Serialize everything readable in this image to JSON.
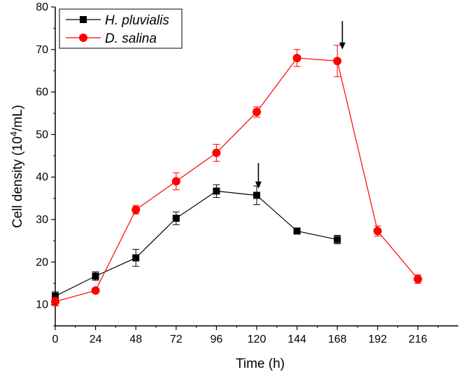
{
  "chart_data": {
    "type": "line",
    "title": "",
    "xlabel": "Time (h)",
    "ylabel_main": "Cell density (10",
    "ylabel_sup": "4",
    "ylabel_tail": "/mL)",
    "xlim": [
      0,
      240
    ],
    "ylim": [
      5,
      80
    ],
    "x_ticks": [
      0,
      24,
      48,
      72,
      96,
      120,
      144,
      168,
      192,
      216
    ],
    "y_ticks": [
      10,
      20,
      30,
      40,
      50,
      60,
      70,
      80
    ],
    "grid": false,
    "legend_position": "top-left",
    "series": [
      {
        "name": "H. pluvialis",
        "color": "#000000",
        "marker": "square",
        "x": [
          0,
          24,
          48,
          72,
          96,
          120,
          144,
          168
        ],
        "y": [
          12.0,
          16.7,
          21.0,
          30.3,
          36.7,
          35.7,
          27.3,
          25.3
        ],
        "err": [
          1.0,
          1.0,
          2.0,
          1.5,
          1.5,
          2.2,
          0.7,
          1.0
        ]
      },
      {
        "name": "D. salina",
        "color": "#ff0000",
        "marker": "circle",
        "x": [
          0,
          24,
          48,
          72,
          96,
          120,
          144,
          168,
          192,
          216
        ],
        "y": [
          10.7,
          13.3,
          32.3,
          39.0,
          45.7,
          55.3,
          68.0,
          67.3,
          27.3,
          16.0
        ],
        "err": [
          1.0,
          0.5,
          1.0,
          2.0,
          2.0,
          1.2,
          2.0,
          3.7,
          1.2,
          1.0
        ]
      }
    ],
    "annotations": [
      {
        "type": "arrow",
        "x": 121,
        "y_from": 43.3,
        "y_to": 37.3
      },
      {
        "type": "arrow",
        "x": 171,
        "y_from": 76.7,
        "y_to": 70.0
      }
    ]
  }
}
